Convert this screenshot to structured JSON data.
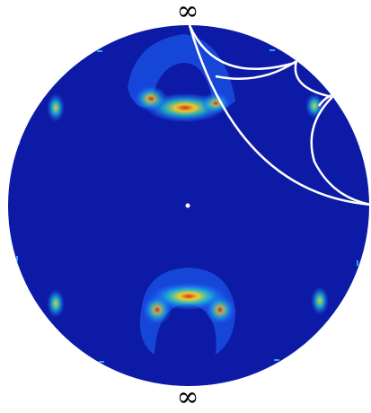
{
  "labels": {
    "top": "∞",
    "bottom": "∞"
  },
  "colors": {
    "disk_background": "#0d1aa6",
    "disk_edge": "#0a1390",
    "curve_color": "#ffffff",
    "heat_low": "#1f6bff",
    "heat_mid": "#20d0d0",
    "heat_high": "#ffe020",
    "heat_peak": "#e03010"
  }
}
